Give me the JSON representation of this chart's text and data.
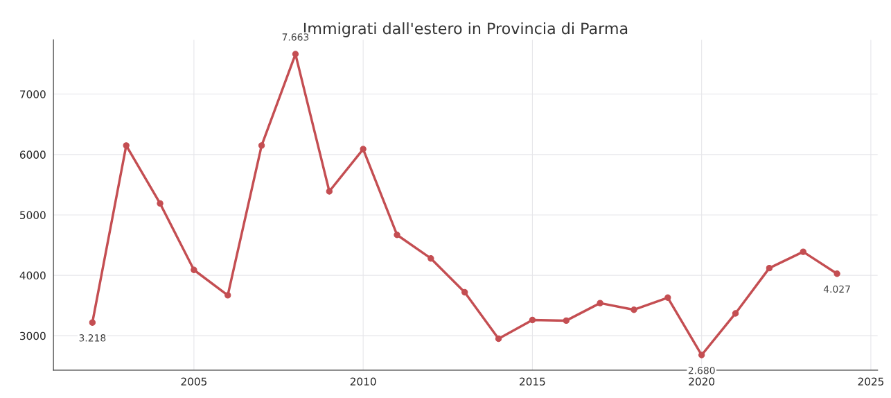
{
  "chart_data": {
    "type": "line",
    "title": "Immigrati dall'estero in Provincia di Parma",
    "x": [
      2002,
      2003,
      2004,
      2005,
      2006,
      2007,
      2008,
      2009,
      2010,
      2011,
      2012,
      2013,
      2014,
      2015,
      2016,
      2017,
      2018,
      2019,
      2020,
      2021,
      2022,
      2023,
      2024
    ],
    "series": [
      {
        "color": "#c44e52",
        "values": [
          3218,
          6150,
          5190,
          4090,
          3670,
          6150,
          7663,
          5390,
          6090,
          4670,
          4280,
          3720,
          2950,
          3260,
          3250,
          3540,
          3430,
          3630,
          2680,
          3370,
          4120,
          4390,
          4027
        ],
        "value_labels": [
          "3.218",
          null,
          null,
          null,
          null,
          null,
          "7.663",
          null,
          null,
          null,
          null,
          null,
          null,
          null,
          null,
          null,
          null,
          null,
          "2.680",
          null,
          null,
          null,
          "4.027"
        ]
      }
    ],
    "xlim": [
      2000.85,
      2025.2
    ],
    "xticks": [
      2005,
      2010,
      2015,
      2020,
      2025
    ],
    "ylim": [
      2430,
      7900
    ],
    "yticks": [
      3000,
      4000,
      5000,
      6000,
      7000
    ],
    "grid": true,
    "marker": "circle",
    "line_style": "solid"
  }
}
